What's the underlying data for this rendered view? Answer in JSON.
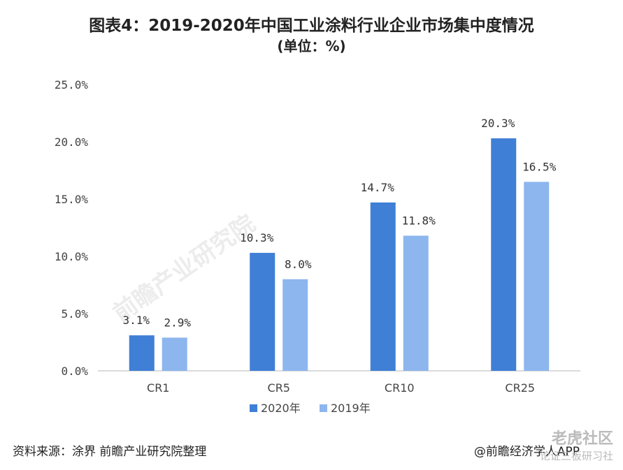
{
  "title": "图表4：2019-2020年中国工业涂料行业企业市场集中度情况",
  "subtitle": "(单位：%)",
  "source": "资料来源：涂界 前瞻产业研究院整理",
  "credit": "@前瞻经济学人APP",
  "watermark": {
    "logo_text": "前瞻产业研究院",
    "corner_text": "老虎社区",
    "corner_sub": "论证三板研习社"
  },
  "chart_data": {
    "type": "bar",
    "categories": [
      "CR1",
      "CR5",
      "CR10",
      "CR25"
    ],
    "series": [
      {
        "name": "2020年",
        "values": [
          3.1,
          10.3,
          14.7,
          20.3
        ],
        "color": "#3f7fd6"
      },
      {
        "name": "2019年",
        "values": [
          2.9,
          8.0,
          11.8,
          16.5
        ],
        "color": "#8db6ee"
      }
    ],
    "data_labels": [
      [
        "3.1%",
        "10.3%",
        "14.7%",
        "20.3%"
      ],
      [
        "2.9%",
        "8.0%",
        "11.8%",
        "16.5%"
      ]
    ],
    "yticks": [
      "0.0%",
      "5.0%",
      "10.0%",
      "15.0%",
      "20.0%",
      "25.0%"
    ],
    "ylim": [
      0,
      25
    ],
    "grid": false,
    "legend_position": "bottom"
  }
}
